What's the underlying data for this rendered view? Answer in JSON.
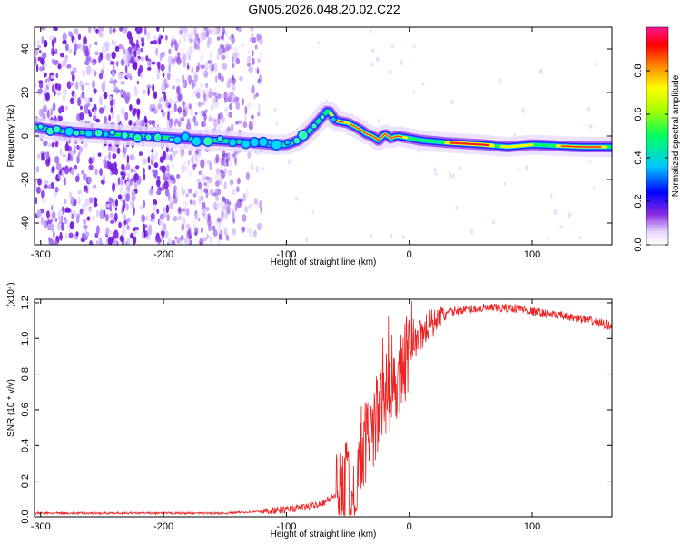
{
  "title": "GN05.2026.048.20.02.C22",
  "colors": {
    "snr_line": "#ee2222",
    "frame": "#000000",
    "background": "#ffffff"
  },
  "chart_data": [
    {
      "type": "heatmap",
      "name": "spectrogram",
      "xlabel": "Height of straight line (km)",
      "ylabel": "Frequency (Hz)",
      "xlim": [
        -305,
        165
      ],
      "ylim": [
        -50,
        50
      ],
      "x_ticks": [
        -300,
        -200,
        -100,
        0,
        100
      ],
      "y_ticks": [
        -40,
        -20,
        0,
        20,
        40
      ],
      "ridge": {
        "x": [
          -305,
          -280,
          -250,
          -220,
          -190,
          -160,
          -130,
          -110,
          -100,
          -90,
          -80,
          -72,
          -66,
          -60,
          -50,
          -40,
          -35,
          -30,
          -25,
          -20,
          -15,
          -10,
          0,
          10,
          30,
          60,
          80,
          100,
          140,
          165
        ],
        "freq": [
          4,
          2,
          1,
          0,
          -1,
          -2,
          -3,
          -4,
          -4,
          -2,
          3,
          8,
          12,
          7,
          6,
          3,
          1,
          0,
          -2,
          1,
          -1,
          0,
          -1,
          -2,
          -3,
          -4,
          -5,
          -4,
          -5,
          -5
        ]
      },
      "colorbar": {
        "label": "Normalized spectral amplitude",
        "range": [
          0,
          1
        ],
        "ticks": [
          0.0,
          0.2,
          0.4,
          0.6,
          0.8
        ]
      }
    },
    {
      "type": "line",
      "name": "snr",
      "xlabel": "Height of straight line (km)",
      "ylabel": "SNR (10 * v/v)",
      "y_multiplier": "(x10⁴)",
      "xlim": [
        -305,
        165
      ],
      "ylim": [
        0,
        1.22
      ],
      "x_ticks": [
        -300,
        -200,
        -100,
        0,
        100
      ],
      "y_ticks": [
        0.0,
        0.2,
        0.4,
        0.6,
        0.8,
        1.0,
        1.2
      ],
      "envelope": {
        "x": [
          -305,
          -250,
          -200,
          -150,
          -120,
          -100,
          -90,
          -80,
          -70,
          -60,
          -55,
          -50,
          -45,
          -40,
          -35,
          -30,
          -25,
          -20,
          -15,
          -10,
          -5,
          0,
          10,
          20,
          30,
          40,
          60,
          80,
          90,
          100,
          120,
          140,
          165
        ],
        "y": [
          0.02,
          0.02,
          0.02,
          0.02,
          0.03,
          0.04,
          0.05,
          0.06,
          0.08,
          0.12,
          0.17,
          0.22,
          0.08,
          0.35,
          0.42,
          0.5,
          0.58,
          0.68,
          0.7,
          0.78,
          0.86,
          0.94,
          1.02,
          1.1,
          1.14,
          1.16,
          1.17,
          1.17,
          1.17,
          1.15,
          1.13,
          1.11,
          1.07
        ]
      }
    }
  ]
}
